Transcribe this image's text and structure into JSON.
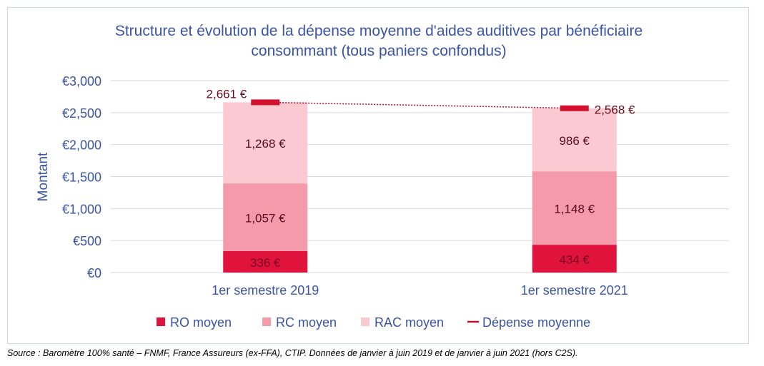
{
  "chart_data": {
    "type": "bar",
    "stacked": true,
    "title": "Structure et évolution de la dépense moyenne d'aides auditives par bénéficiaire consommant (tous paniers confondus)",
    "ylabel": "Montant",
    "xlabel": "",
    "ylim": [
      0,
      3000
    ],
    "yticks": [
      0,
      500,
      1000,
      1500,
      2000,
      2500,
      3000
    ],
    "ytick_labels": [
      "€0",
      "€500",
      "€1,000",
      "€1,500",
      "€2,000",
      "€2,500",
      "€3,000"
    ],
    "grid": true,
    "legend_position": "bottom",
    "categories": [
      "1er semestre 2019",
      "1er semestre 2021"
    ],
    "series": [
      {
        "name": "RO moyen",
        "values": [
          336,
          434
        ],
        "labels": [
          "336 €",
          "434 €"
        ],
        "color": "#e0133d",
        "label_color": "#7a0a1f"
      },
      {
        "name": "RC moyen",
        "values": [
          1057,
          1148
        ],
        "labels": [
          "1,057 €",
          "1,148 €"
        ],
        "color": "#f59aaa",
        "label_color": "#5a0a1f"
      },
      {
        "name": "RAC moyen",
        "values": [
          1268,
          986
        ],
        "labels": [
          "1,268 €",
          "986 €"
        ],
        "color": "#fac9d1",
        "label_color": "#5a0a1f"
      }
    ],
    "line_series": {
      "name": "Dépense moyenne",
      "values": [
        2661,
        2568
      ],
      "labels": [
        "2,661 €",
        "2,568 €"
      ],
      "color": "#c0102f",
      "label_color": "#6b0a1c"
    }
  },
  "source_text": "Source : Baromètre 100% santé – FNMF, France Assureurs (ex-FFA), CTIP. Données de janvier à juin 2019 et de janvier à juin 2021 (hors C2S)."
}
